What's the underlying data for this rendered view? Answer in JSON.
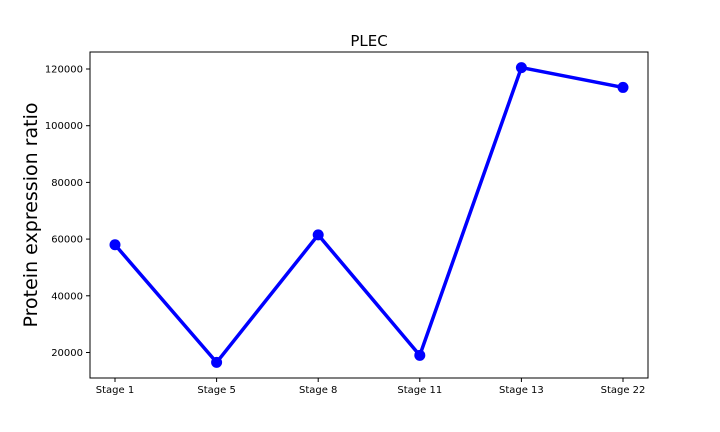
{
  "chart_data": {
    "type": "line",
    "title": "PLEC",
    "xlabel": "",
    "ylabel": "Protein expression ratio",
    "categories": [
      "Stage 1",
      "Stage 5",
      "Stage 8",
      "Stage 11",
      "Stage 13",
      "Stage 22"
    ],
    "series": [
      {
        "values": [
          58000,
          16500,
          61500,
          19000,
          120500,
          113500
        ],
        "color": "#0000ff"
      }
    ],
    "ylim": [
      11000,
      126000
    ],
    "yticks": [
      20000,
      40000,
      60000,
      80000,
      100000,
      120000
    ],
    "grid": false,
    "legend": "none"
  }
}
